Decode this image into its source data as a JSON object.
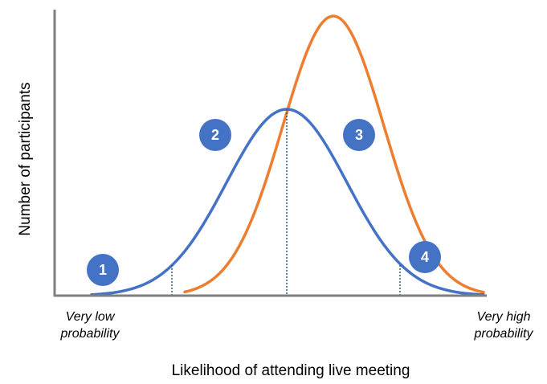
{
  "y_axis_label": "Number of participants",
  "x_axis_label": "Likelihood of attending live meeting",
  "x_axis_ends": {
    "low": [
      "Very low",
      "probability"
    ],
    "high": [
      "Very high",
      "probability"
    ]
  },
  "markers": [
    "1",
    "2",
    "3",
    "4"
  ]
}
